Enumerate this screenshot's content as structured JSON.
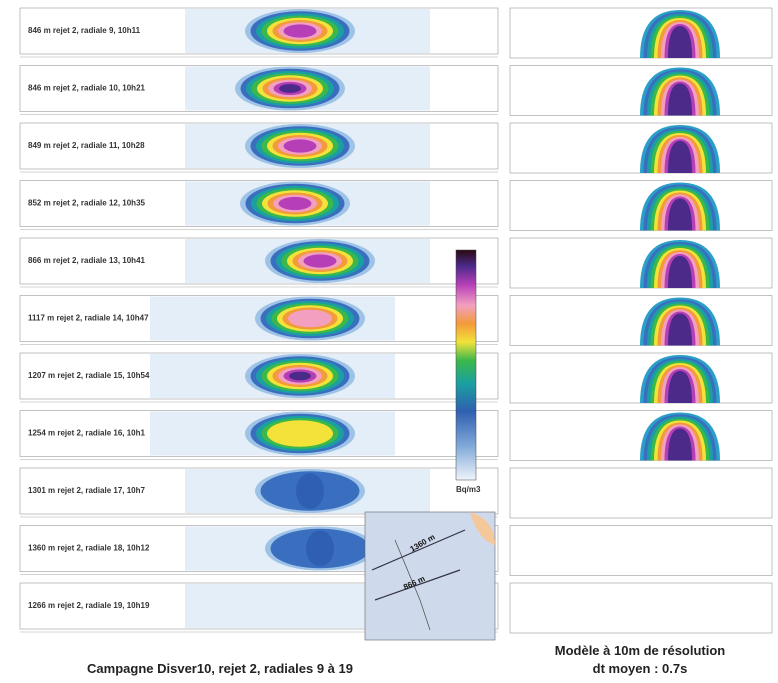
{
  "left_panels": [
    "846 m rejet 2, radiale 9, 10h11",
    "846 m rejet 2, radiale 10, 10h21",
    "849 m rejet 2, radiale 11, 10h28",
    "852 m rejet 2, radiale 12, 10h35",
    "866 m rejet 2, radiale 13, 10h41",
    "1117 m rejet 2, radiale 14, 10h47",
    "1207 m rejet 2, radiale 15, 10h54",
    "1254 m rejet 2, radiale 16, 10h1",
    "1301 m rejet 2, radiale 17, 10h7",
    "1360 m rejet 2, radiale 18, 10h12",
    "1266 m rejet 2, radiale 19, 10h19"
  ],
  "colorbar_unit": "Bq/m3",
  "map_labels": [
    "1360 m",
    "866 m"
  ],
  "caption_left": "Campagne Disver10, rejet 2, radiales 9 à 19",
  "caption_right": [
    "Modèle à 10m de résolution",
    "dt moyen : 0.7s"
  ]
}
